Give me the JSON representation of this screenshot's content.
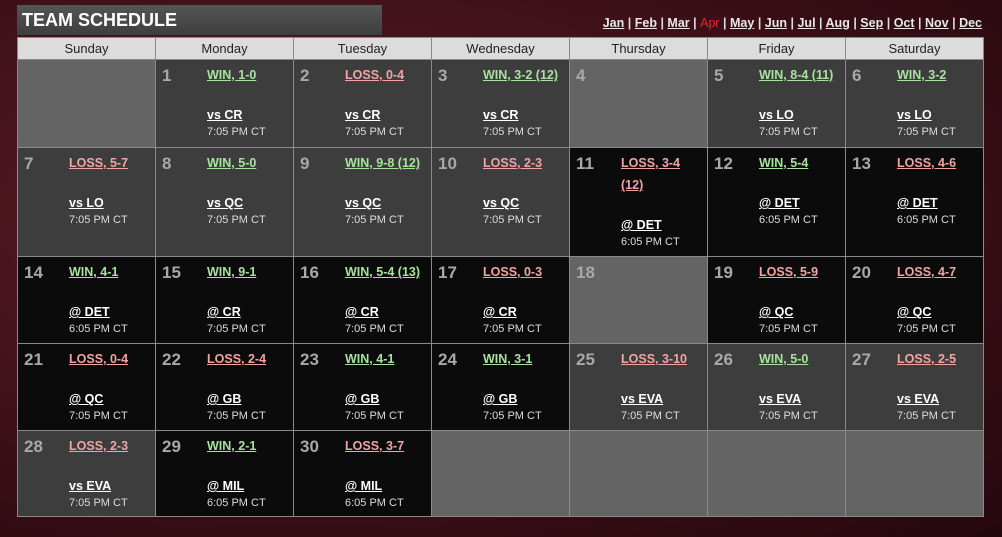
{
  "header": {
    "title": "TEAM SCHEDULE",
    "months": [
      "Jan",
      "Feb",
      "Mar",
      "Apr",
      "May",
      "Jun",
      "Jul",
      "Aug",
      "Sep",
      "Oct",
      "Nov",
      "Dec"
    ],
    "selected_month": "Apr"
  },
  "weekdays": [
    "Sunday",
    "Monday",
    "Tuesday",
    "Wednesday",
    "Thursday",
    "Friday",
    "Saturday"
  ],
  "weeks": [
    [
      null,
      {
        "day": "1",
        "result": "WIN, 1-0",
        "opponent": "vs CR",
        "time": "7:05 PM CT"
      },
      {
        "day": "2",
        "result": "LOSS, 0-4",
        "opponent": "vs CR",
        "time": "7:05 PM CT"
      },
      {
        "day": "3",
        "result": "WIN, 3-2 (12)",
        "opponent": "vs CR",
        "time": "7:05 PM CT"
      },
      {
        "day": "4"
      },
      {
        "day": "5",
        "result": "WIN, 8-4 (11)",
        "opponent": "vs LO",
        "time": "7:05 PM CT"
      },
      {
        "day": "6",
        "result": "WIN, 3-2",
        "opponent": "vs LO",
        "time": "7:05 PM CT"
      }
    ],
    [
      {
        "day": "7",
        "result": "LOSS, 5-7",
        "opponent": "vs LO",
        "time": "7:05 PM CT"
      },
      {
        "day": "8",
        "result": "WIN, 5-0",
        "opponent": "vs QC",
        "time": "7:05 PM CT"
      },
      {
        "day": "9",
        "result": "WIN, 9-8 (12)",
        "opponent": "vs QC",
        "time": "7:05 PM CT"
      },
      {
        "day": "10",
        "result": "LOSS, 2-3",
        "opponent": "vs QC",
        "time": "7:05 PM CT"
      },
      {
        "day": "11",
        "result": "LOSS, 3-4 (12)",
        "opponent": "@ DET",
        "time": "6:05 PM CT"
      },
      {
        "day": "12",
        "result": "WIN, 5-4",
        "opponent": "@ DET",
        "time": "6:05 PM CT"
      },
      {
        "day": "13",
        "result": "LOSS, 4-6",
        "opponent": "@ DET",
        "time": "6:05 PM CT"
      }
    ],
    [
      {
        "day": "14",
        "result": "WIN, 4-1",
        "opponent": "@ DET",
        "time": "6:05 PM CT"
      },
      {
        "day": "15",
        "result": "WIN, 9-1",
        "opponent": "@ CR",
        "time": "7:05 PM CT"
      },
      {
        "day": "16",
        "result": "WIN, 5-4 (13)",
        "opponent": "@ CR",
        "time": "7:05 PM CT"
      },
      {
        "day": "17",
        "result": "LOSS, 0-3",
        "opponent": "@ CR",
        "time": "7:05 PM CT"
      },
      {
        "day": "18"
      },
      {
        "day": "19",
        "result": "LOSS, 5-9",
        "opponent": "@ QC",
        "time": "7:05 PM CT"
      },
      {
        "day": "20",
        "result": "LOSS, 4-7",
        "opponent": "@ QC",
        "time": "7:05 PM CT"
      }
    ],
    [
      {
        "day": "21",
        "result": "LOSS, 0-4",
        "opponent": "@ QC",
        "time": "7:05 PM CT"
      },
      {
        "day": "22",
        "result": "LOSS, 2-4",
        "opponent": "@ GB",
        "time": "7:05 PM CT"
      },
      {
        "day": "23",
        "result": "WIN, 4-1",
        "opponent": "@ GB",
        "time": "7:05 PM CT"
      },
      {
        "day": "24",
        "result": "WIN, 3-1",
        "opponent": "@ GB",
        "time": "7:05 PM CT"
      },
      {
        "day": "25",
        "result": "LOSS, 3-10",
        "opponent": "vs EVA",
        "time": "7:05 PM CT"
      },
      {
        "day": "26",
        "result": "WIN, 5-0",
        "opponent": "vs EVA",
        "time": "7:05 PM CT"
      },
      {
        "day": "27",
        "result": "LOSS, 2-5",
        "opponent": "vs EVA",
        "time": "7:05 PM CT"
      }
    ],
    [
      {
        "day": "28",
        "result": "LOSS, 2-3",
        "opponent": "vs EVA",
        "time": "7:05 PM CT"
      },
      {
        "day": "29",
        "result": "WIN, 2-1",
        "opponent": "@ MIL",
        "time": "6:05 PM CT"
      },
      {
        "day": "30",
        "result": "LOSS, 3-7",
        "opponent": "@ MIL",
        "time": "6:05 PM CT"
      },
      null,
      null,
      null,
      null
    ]
  ]
}
